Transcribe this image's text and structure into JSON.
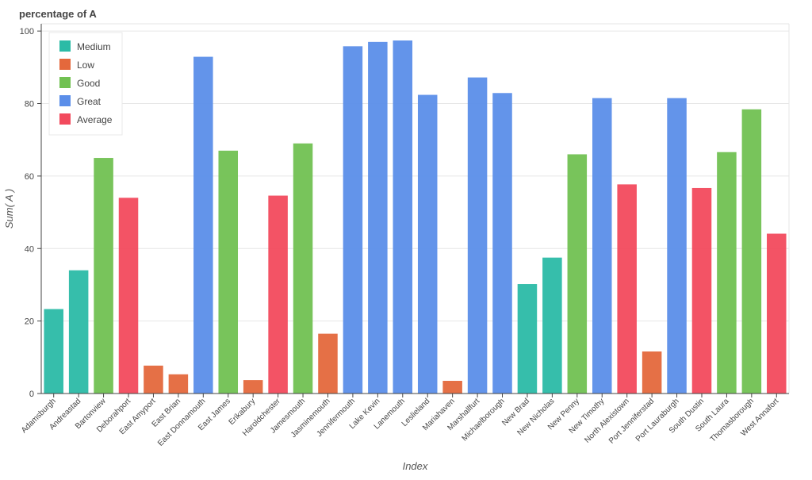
{
  "chart_data": {
    "type": "bar",
    "title": "percentage of A",
    "xlabel": "Index",
    "ylabel": "Sum( A )",
    "ylim": [
      0,
      102
    ],
    "yticks": [
      0,
      20,
      40,
      60,
      80,
      100
    ],
    "grid": true,
    "legend_position": "top-left",
    "legend": [
      {
        "label": "Medium",
        "color": "#2bbba6"
      },
      {
        "label": "Low",
        "color": "#e4683c"
      },
      {
        "label": "Good",
        "color": "#71c152"
      },
      {
        "label": "Great",
        "color": "#5b8ee9"
      },
      {
        "label": "Average",
        "color": "#f24a5d"
      }
    ],
    "categories": [
      "Adamsburgh",
      "Andreastad",
      "Bartonview",
      "Deborahport",
      "East Amyport",
      "East Brian",
      "East Donnamouth",
      "East James",
      "Erikabury",
      "Haroldchester",
      "Jamesmouth",
      "Jasminemouth",
      "Jennifermouth",
      "Lake Kevin",
      "Lanemouth",
      "Leslieland",
      "Mariahaven",
      "Marshallfurt",
      "Michaelborough",
      "New Brad",
      "New Nicholas",
      "New Penny",
      "New Timothy",
      "North Alexistown",
      "Port Jenniferstad",
      "Port Lauraburgh",
      "South Dustin",
      "South Laura",
      "Thomasborough",
      "West Annafort"
    ],
    "values": [
      23.3,
      34,
      65,
      54,
      7.7,
      5.3,
      92.9,
      67,
      3.7,
      54.6,
      69,
      16.5,
      95.8,
      97,
      97.4,
      82.4,
      3.5,
      87.2,
      82.9,
      30.2,
      37.5,
      66,
      81.5,
      57.7,
      11.6,
      81.5,
      56.7,
      66.6,
      78.4,
      44.1
    ],
    "groups": [
      "Medium",
      "Medium",
      "Good",
      "Average",
      "Low",
      "Low",
      "Great",
      "Good",
      "Low",
      "Average",
      "Good",
      "Low",
      "Great",
      "Great",
      "Great",
      "Great",
      "Low",
      "Great",
      "Great",
      "Medium",
      "Medium",
      "Good",
      "Great",
      "Average",
      "Low",
      "Great",
      "Average",
      "Good",
      "Good",
      "Average"
    ]
  }
}
